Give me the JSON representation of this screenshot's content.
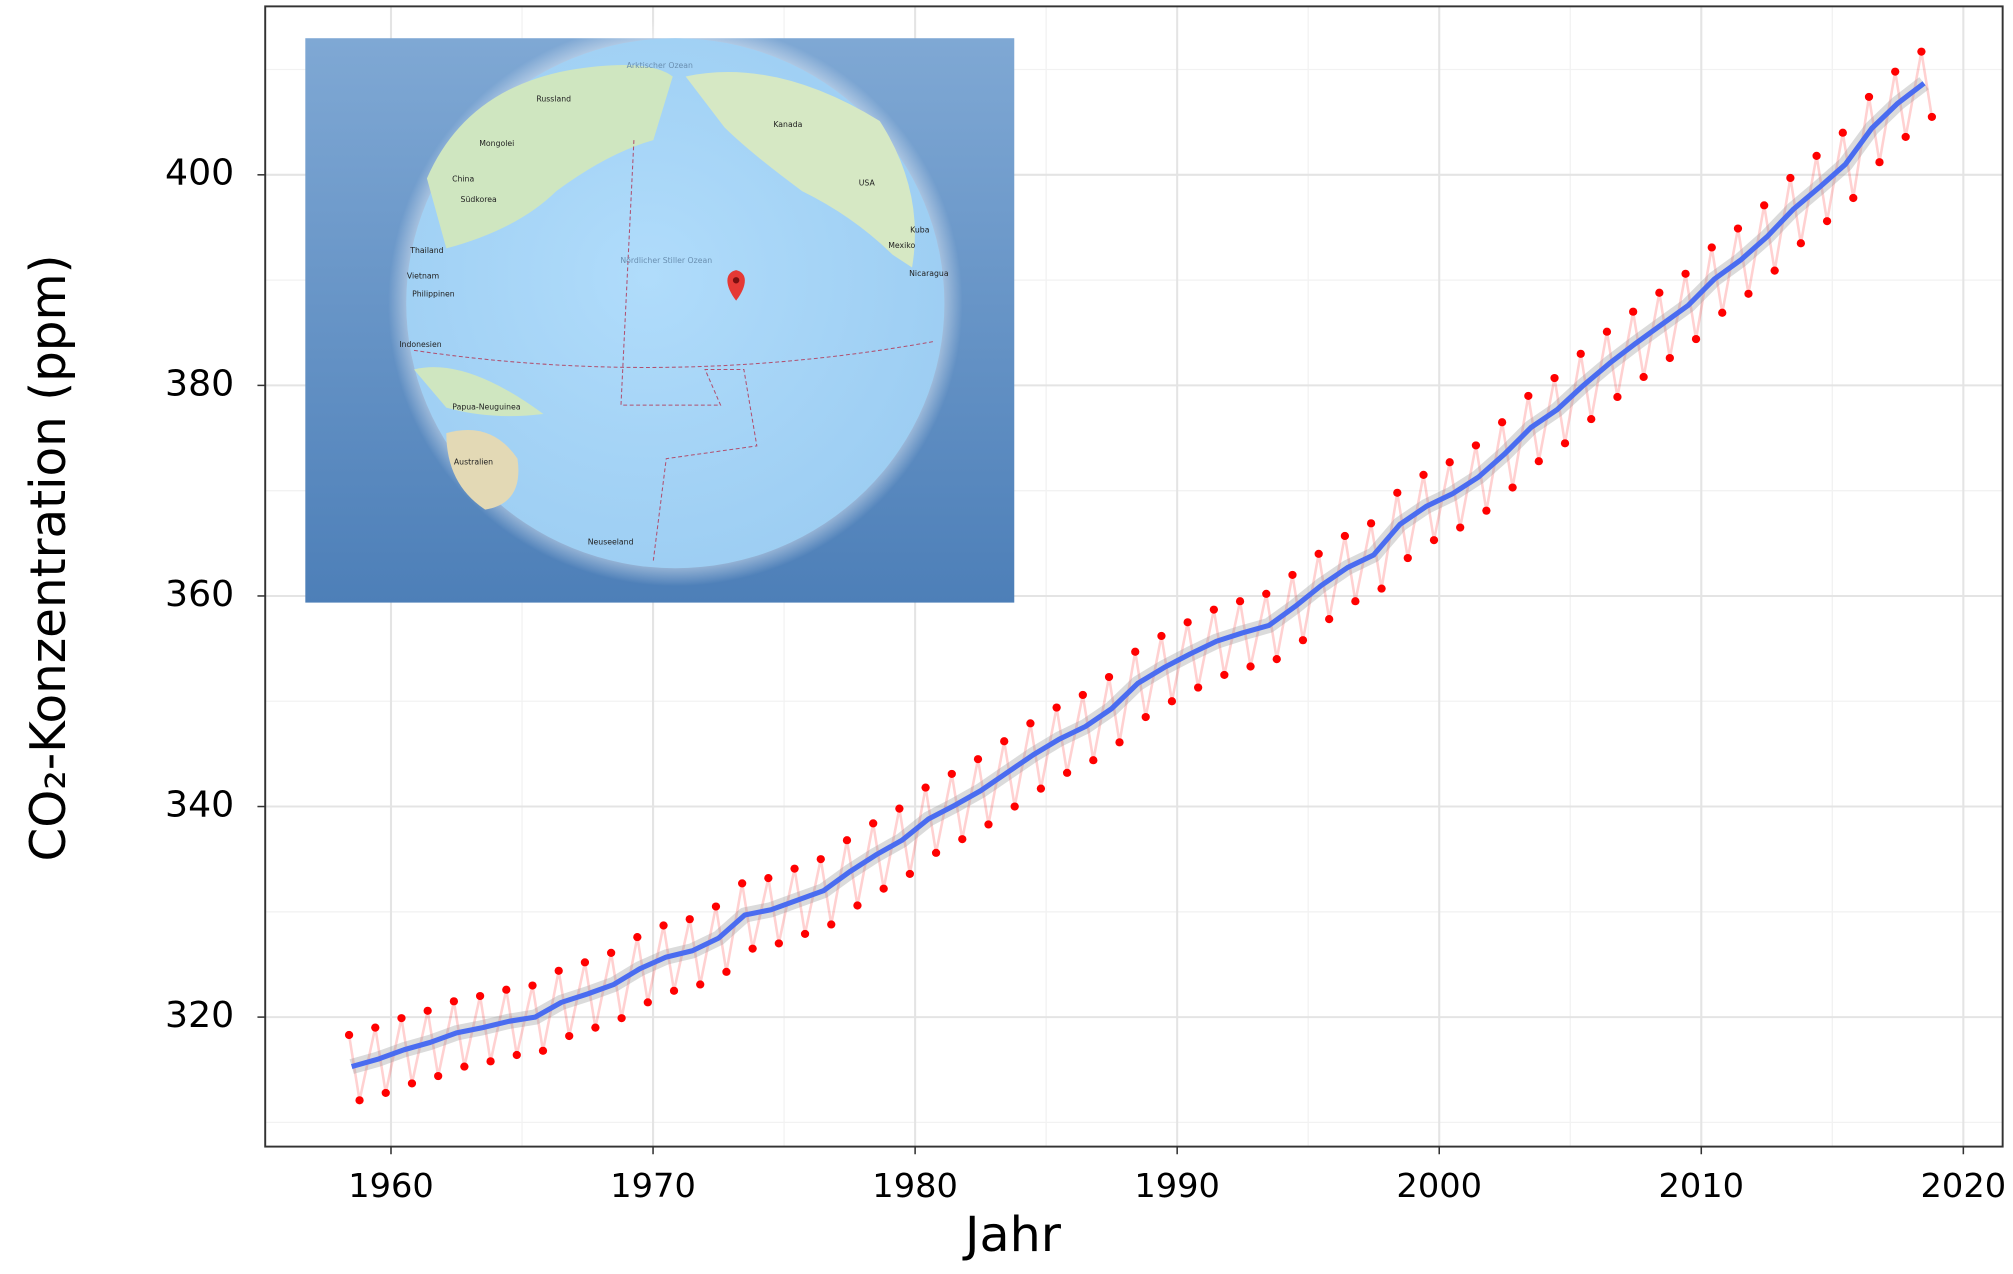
{
  "chart_data": {
    "type": "line",
    "x_label": "Jahr",
    "y_label": "CO₂-Konzentration (ppm)",
    "xlim": [
      1955.2,
      2021.5
    ],
    "ylim": [
      307.7,
      416
    ],
    "xticks": [
      1960,
      1970,
      1980,
      1990,
      2000,
      2010,
      2020
    ],
    "yticks": [
      320,
      340,
      360,
      380,
      400
    ],
    "x_minor_grid": [
      1965,
      1975,
      1985,
      1995,
      2005,
      2015
    ],
    "y_minor_grid": [
      310,
      330,
      350,
      370,
      390,
      410
    ],
    "grid": true,
    "series": [
      {
        "color": "#ff0000",
        "marker": "circle",
        "x": [
          1958.4,
          1958.8,
          1959.4,
          1959.8,
          1960.4,
          1960.8,
          1961.4,
          1961.8,
          1962.4,
          1962.8,
          1963.4,
          1963.8,
          1964.4,
          1964.8,
          1965.4,
          1965.8,
          1966.4,
          1966.8,
          1967.4,
          1967.8,
          1968.4,
          1968.8,
          1969.4,
          1969.8,
          1970.4,
          1970.8,
          1971.4,
          1971.8,
          1972.4,
          1972.8,
          1973.4,
          1973.8,
          1974.4,
          1974.8,
          1975.4,
          1975.8,
          1976.4,
          1976.8,
          1977.4,
          1977.8,
          1978.4,
          1978.8,
          1979.4,
          1979.8,
          1980.4,
          1980.8,
          1981.4,
          1981.8,
          1982.4,
          1982.8,
          1983.4,
          1983.8,
          1984.4,
          1984.8,
          1985.4,
          1985.8,
          1986.4,
          1986.8,
          1987.4,
          1987.8,
          1988.4,
          1988.8,
          1989.4,
          1989.8,
          1990.4,
          1990.8,
          1991.4,
          1991.8,
          1992.4,
          1992.8,
          1993.4,
          1993.8,
          1994.4,
          1994.8,
          1995.4,
          1995.8,
          1996.4,
          1996.8,
          1997.4,
          1997.8,
          1998.4,
          1998.8,
          1999.4,
          1999.8,
          2000.4,
          2000.8,
          2001.4,
          2001.8,
          2002.4,
          2002.8,
          2003.4,
          2003.8,
          2004.4,
          2004.8,
          2005.4,
          2005.8,
          2006.4,
          2006.8,
          2007.4,
          2007.8,
          2008.4,
          2008.8,
          2009.4,
          2009.8,
          2010.4,
          2010.8,
          2011.4,
          2011.8,
          2012.4,
          2012.8,
          2013.4,
          2013.8,
          2014.4,
          2014.8,
          2015.4,
          2015.8,
          2016.4,
          2016.8,
          2017.4,
          2017.8,
          2018.4,
          2018.8
        ],
        "values": [
          318.3,
          312.1,
          319.0,
          312.8,
          319.9,
          313.7,
          320.6,
          314.4,
          321.5,
          315.3,
          322.0,
          315.8,
          322.6,
          316.4,
          323.0,
          316.8,
          324.4,
          318.2,
          325.2,
          319.0,
          326.1,
          319.9,
          327.6,
          321.4,
          328.7,
          322.5,
          329.3,
          323.1,
          330.5,
          324.3,
          332.7,
          326.5,
          333.2,
          327.0,
          334.1,
          327.9,
          335.0,
          328.8,
          336.8,
          330.6,
          338.4,
          332.2,
          339.8,
          333.6,
          341.8,
          335.6,
          343.1,
          336.9,
          344.5,
          338.3,
          346.2,
          340.0,
          347.9,
          341.7,
          349.4,
          343.2,
          350.6,
          344.4,
          352.3,
          346.1,
          354.7,
          348.5,
          356.2,
          350.0,
          357.5,
          351.3,
          358.7,
          352.5,
          359.5,
          353.3,
          360.2,
          354.0,
          362.0,
          355.8,
          364.0,
          357.8,
          365.7,
          359.5,
          366.9,
          360.7,
          369.8,
          363.6,
          371.5,
          365.3,
          372.7,
          366.5,
          374.3,
          368.1,
          376.5,
          370.3,
          379.0,
          372.8,
          380.7,
          374.5,
          383.0,
          376.8,
          385.1,
          378.9,
          387.0,
          380.8,
          388.8,
          382.6,
          390.6,
          384.4,
          393.1,
          386.9,
          394.9,
          388.7,
          397.1,
          390.9,
          399.7,
          393.5,
          401.8,
          395.6,
          404.0,
          397.8,
          407.4,
          401.2,
          409.8,
          403.6,
          411.7,
          405.5
        ]
      },
      {
        "color": "#4a6cf0",
        "marker": null,
        "x": [
          1958.5,
          1959.5,
          1960.5,
          1961.5,
          1962.5,
          1963.5,
          1964.5,
          1965.5,
          1966.5,
          1967.5,
          1968.5,
          1969.5,
          1970.5,
          1971.5,
          1972.5,
          1973.5,
          1974.5,
          1975.5,
          1976.5,
          1977.5,
          1978.5,
          1979.5,
          1980.5,
          1981.5,
          1982.5,
          1983.5,
          1984.5,
          1985.5,
          1986.5,
          1987.5,
          1988.5,
          1989.5,
          1990.5,
          1991.5,
          1992.5,
          1993.5,
          1994.5,
          1995.5,
          1996.5,
          1997.5,
          1998.5,
          1999.5,
          2000.5,
          2001.5,
          2002.5,
          2003.5,
          2004.5,
          2005.5,
          2006.5,
          2007.5,
          2008.5,
          2009.5,
          2010.5,
          2011.5,
          2012.5,
          2013.5,
          2014.5,
          2015.5,
          2016.5,
          2017.5,
          2018.5
        ],
        "values": [
          315.3,
          316.0,
          316.9,
          317.6,
          318.5,
          319.0,
          319.6,
          320.0,
          321.4,
          322.2,
          323.1,
          324.6,
          325.7,
          326.3,
          327.5,
          329.7,
          330.2,
          331.1,
          332.0,
          333.8,
          335.4,
          336.8,
          338.8,
          340.1,
          341.5,
          343.2,
          344.9,
          346.4,
          347.6,
          349.3,
          351.7,
          353.2,
          354.5,
          355.7,
          356.5,
          357.2,
          359.0,
          361.0,
          362.7,
          363.9,
          366.8,
          368.5,
          369.7,
          371.3,
          373.5,
          376.0,
          377.7,
          380.0,
          382.1,
          384.0,
          385.8,
          387.6,
          390.1,
          391.9,
          394.1,
          396.7,
          398.8,
          401.0,
          404.4,
          406.8,
          408.7
        ]
      }
    ]
  },
  "inset_map": {
    "labels": [
      "Arktischer Ozean",
      "Russland",
      "Kanada",
      "Mongolei",
      "China",
      "Südkorea",
      "USA",
      "Thailand",
      "Vietnam",
      "Philippinen",
      "Nördlicher Stiller Ozean",
      "Kuba",
      "Mexiko",
      "Nicaragua",
      "Indonesien",
      "Papua-Neuguinea",
      "Australien",
      "Neuseeland"
    ]
  }
}
